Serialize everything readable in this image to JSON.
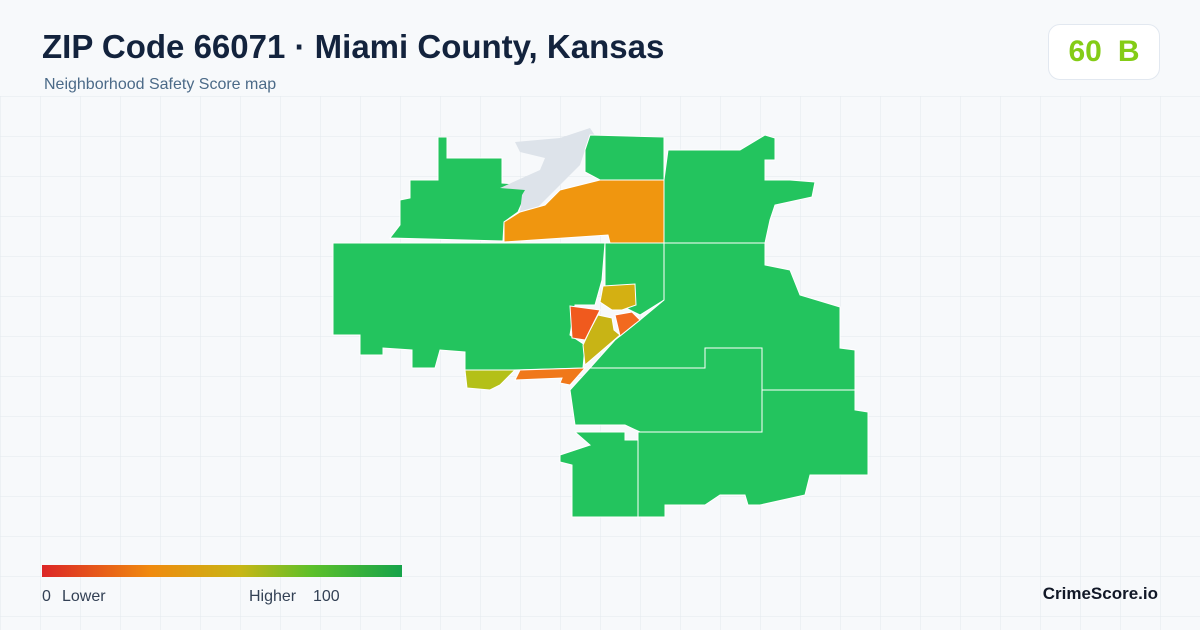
{
  "header": {
    "title": "ZIP Code 66071 · Miami County, Kansas",
    "subtitle": "Neighborhood Safety Score map"
  },
  "badge": {
    "score": "60",
    "grade": "B"
  },
  "legend": {
    "min": "0",
    "min_label": "Lower",
    "max_label": "Higher",
    "max": "100"
  },
  "brand": "CrimeScore.io"
}
